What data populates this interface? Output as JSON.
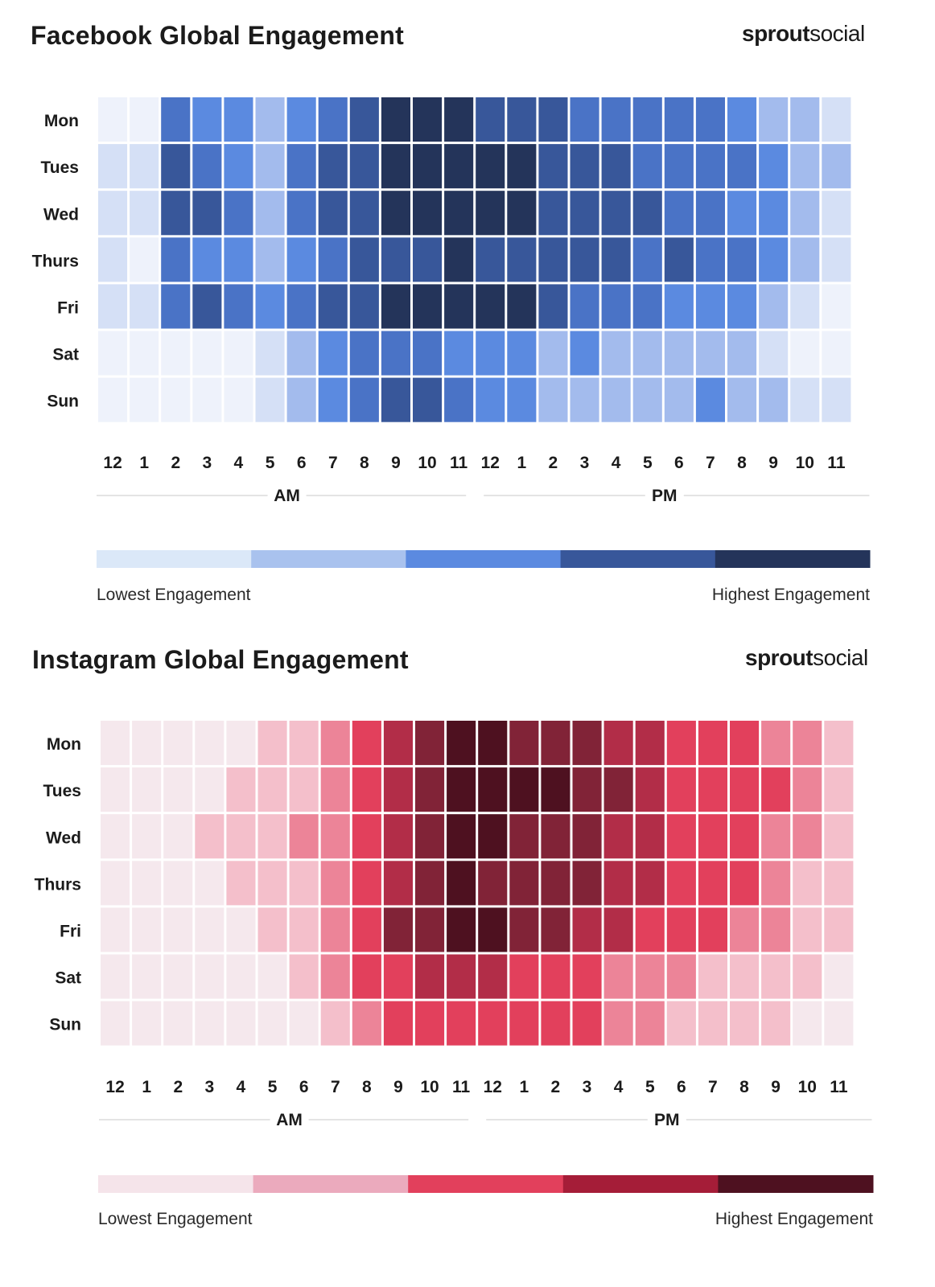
{
  "charts": [
    {
      "title": "Facebook Global Engagement",
      "brand_primary": "sprout",
      "brand_secondary": "social",
      "legend_low": "Lowest Engagement",
      "legend_high": "Highest Engagement",
      "period_am": "AM",
      "period_pm": "PM",
      "palette": [
        "#eef2fb",
        "#d5e0f6",
        "#a3bbed",
        "#5b8ae0",
        "#4a73c6",
        "#38579a",
        "#24345a"
      ],
      "legend_colors": [
        "#dbe8f8",
        "#a9c2ee",
        "#5b8ae0",
        "#38579a",
        "#24345a"
      ]
    },
    {
      "title": "Instagram Global Engagement",
      "brand_primary": "sprout",
      "brand_secondary": "social",
      "legend_low": "Lowest Engagement",
      "legend_high": "Highest Engagement",
      "period_am": "AM",
      "period_pm": "PM",
      "palette": [
        "#f5e8ed",
        "#f4bfcb",
        "#ec8498",
        "#e2405c",
        "#b22d48",
        "#812337",
        "#4e1120"
      ],
      "legend_colors": [
        "#f5e4ea",
        "#ebaabd",
        "#e2405c",
        "#a51d38",
        "#4e1120"
      ]
    }
  ],
  "chart_data": [
    {
      "type": "heatmap",
      "title": "Facebook Global Engagement",
      "days": [
        "Mon",
        "Tues",
        "Wed",
        "Thurs",
        "Fri",
        "Sat",
        "Sun"
      ],
      "hours": [
        "12",
        "1",
        "2",
        "3",
        "4",
        "5",
        "6",
        "7",
        "8",
        "9",
        "10",
        "11",
        "12",
        "1",
        "2",
        "3",
        "4",
        "5",
        "6",
        "7",
        "8",
        "9",
        "10",
        "11"
      ],
      "scale": "0 = lowest engagement, 6 = highest engagement",
      "values": [
        [
          0,
          0,
          4,
          3,
          3,
          2,
          3,
          4,
          5,
          6,
          6,
          6,
          5,
          5,
          5,
          4,
          4,
          4,
          4,
          4,
          3,
          2,
          2,
          1
        ],
        [
          1,
          1,
          5,
          4,
          3,
          2,
          4,
          5,
          5,
          6,
          6,
          6,
          6,
          6,
          5,
          5,
          5,
          4,
          4,
          4,
          4,
          3,
          2,
          2
        ],
        [
          1,
          1,
          5,
          5,
          4,
          2,
          4,
          5,
          5,
          6,
          6,
          6,
          6,
          6,
          5,
          5,
          5,
          5,
          4,
          4,
          3,
          3,
          2,
          1
        ],
        [
          1,
          0,
          4,
          3,
          3,
          2,
          3,
          4,
          5,
          5,
          5,
          6,
          5,
          5,
          5,
          5,
          5,
          4,
          5,
          4,
          4,
          3,
          2,
          1
        ],
        [
          1,
          1,
          4,
          5,
          4,
          3,
          4,
          5,
          5,
          6,
          6,
          6,
          6,
          6,
          5,
          4,
          4,
          4,
          3,
          3,
          3,
          2,
          1,
          0
        ],
        [
          0,
          0,
          0,
          0,
          0,
          1,
          2,
          3,
          4,
          4,
          4,
          3,
          3,
          3,
          2,
          3,
          2,
          2,
          2,
          2,
          2,
          1,
          0,
          0
        ],
        [
          0,
          0,
          0,
          0,
          0,
          1,
          2,
          3,
          4,
          5,
          5,
          4,
          3,
          3,
          2,
          2,
          2,
          2,
          2,
          3,
          2,
          2,
          1,
          1
        ]
      ]
    },
    {
      "type": "heatmap",
      "title": "Instagram Global Engagement",
      "days": [
        "Mon",
        "Tues",
        "Wed",
        "Thurs",
        "Fri",
        "Sat",
        "Sun"
      ],
      "hours": [
        "12",
        "1",
        "2",
        "3",
        "4",
        "5",
        "6",
        "7",
        "8",
        "9",
        "10",
        "11",
        "12",
        "1",
        "2",
        "3",
        "4",
        "5",
        "6",
        "7",
        "8",
        "9",
        "10",
        "11"
      ],
      "scale": "0 = lowest engagement, 6 = highest engagement",
      "values": [
        [
          0,
          0,
          0,
          0,
          0,
          1,
          1,
          2,
          3,
          4,
          5,
          6,
          6,
          5,
          5,
          5,
          4,
          4,
          3,
          3,
          3,
          2,
          2,
          1
        ],
        [
          0,
          0,
          0,
          0,
          1,
          1,
          1,
          2,
          3,
          4,
          5,
          6,
          6,
          6,
          6,
          5,
          5,
          4,
          3,
          3,
          3,
          3,
          2,
          1
        ],
        [
          0,
          0,
          0,
          1,
          1,
          1,
          2,
          2,
          3,
          4,
          5,
          6,
          6,
          5,
          5,
          5,
          4,
          4,
          3,
          3,
          3,
          2,
          2,
          1
        ],
        [
          0,
          0,
          0,
          0,
          1,
          1,
          1,
          2,
          3,
          4,
          5,
          6,
          5,
          5,
          5,
          5,
          4,
          4,
          3,
          3,
          3,
          2,
          1,
          1
        ],
        [
          0,
          0,
          0,
          0,
          0,
          1,
          1,
          2,
          3,
          5,
          5,
          6,
          6,
          5,
          5,
          4,
          4,
          3,
          3,
          3,
          2,
          2,
          1,
          1
        ],
        [
          0,
          0,
          0,
          0,
          0,
          0,
          1,
          2,
          3,
          3,
          4,
          4,
          4,
          3,
          3,
          3,
          2,
          2,
          2,
          1,
          1,
          1,
          1,
          0
        ],
        [
          0,
          0,
          0,
          0,
          0,
          0,
          0,
          1,
          2,
          3,
          3,
          3,
          3,
          3,
          3,
          3,
          2,
          2,
          1,
          1,
          1,
          1,
          0,
          0
        ]
      ]
    }
  ]
}
